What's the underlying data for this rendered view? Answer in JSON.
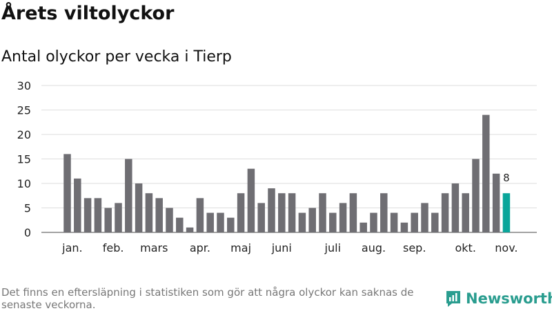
{
  "title": "Årets viltolyckor",
  "subtitle": "Antal olyckor per vecka i Tierp",
  "footnote": "Det finns en eftersläpning i statistiken som gör att några olyckor kan saknas de senaste veckorna.",
  "brand": "Newsworthy",
  "colors": {
    "bar": "#6f6e73",
    "highlight": "#0aa59a",
    "grid": "#dddddd",
    "brand": "#2a9d8f"
  },
  "chart_data": {
    "type": "bar",
    "title": "Antal olyckor per vecka i Tierp",
    "xlabel": "",
    "ylabel": "",
    "ylim": [
      0,
      30
    ],
    "yticks": [
      0,
      5,
      10,
      15,
      20,
      25,
      30
    ],
    "grid": true,
    "values": [
      16,
      11,
      7,
      7,
      5,
      6,
      15,
      10,
      8,
      7,
      5,
      3,
      1,
      7,
      4,
      4,
      3,
      8,
      13,
      6,
      9,
      8,
      8,
      4,
      5,
      8,
      4,
      6,
      8,
      2,
      4,
      8,
      4,
      2,
      4,
      6,
      4,
      8,
      10,
      8,
      15,
      24,
      12,
      8
    ],
    "highlight_index": 43,
    "data_labels": [
      {
        "index": 43,
        "text": "8"
      }
    ],
    "month_labels": [
      {
        "label": "jan.",
        "week_index": 0.5
      },
      {
        "label": "feb.",
        "week_index": 4.5
      },
      {
        "label": "mars",
        "week_index": 8.5
      },
      {
        "label": "apr.",
        "week_index": 13.0
      },
      {
        "label": "maj",
        "week_index": 17.0
      },
      {
        "label": "juni",
        "week_index": 21.0
      },
      {
        "label": "juli",
        "week_index": 26.0
      },
      {
        "label": "aug.",
        "week_index": 30.0
      },
      {
        "label": "sep.",
        "week_index": 34.0
      },
      {
        "label": "okt.",
        "week_index": 39.0
      },
      {
        "label": "nov.",
        "week_index": 43.0
      }
    ]
  }
}
